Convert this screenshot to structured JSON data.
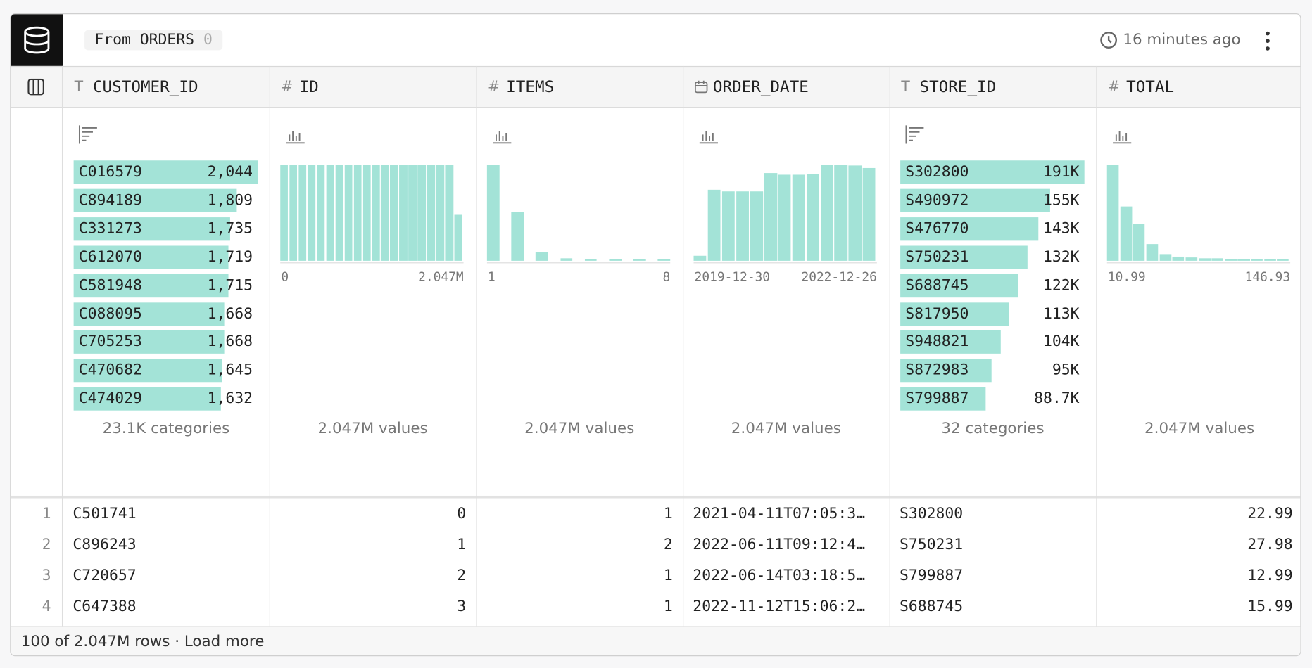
{
  "header": {
    "source": "From ORDERS",
    "count": "0",
    "updated": "16 minutes ago"
  },
  "columns": [
    {
      "icon": "T",
      "name": "CUSTOMER_ID",
      "summary": {
        "kind": "categories",
        "top": [
          {
            "label": "C016579",
            "value": 2044,
            "value_label": "2,044"
          },
          {
            "label": "C894189",
            "value": 1809,
            "value_label": "1,809"
          },
          {
            "label": "C331273",
            "value": 1735,
            "value_label": "1,735"
          },
          {
            "label": "C612070",
            "value": 1719,
            "value_label": "1,719"
          },
          {
            "label": "C581948",
            "value": 1715,
            "value_label": "1,715"
          },
          {
            "label": "C088095",
            "value": 1668,
            "value_label": "1,668"
          },
          {
            "label": "C705253",
            "value": 1668,
            "value_label": "1,668"
          },
          {
            "label": "C470682",
            "value": 1645,
            "value_label": "1,645"
          },
          {
            "label": "C474029",
            "value": 1632,
            "value_label": "1,632"
          }
        ],
        "footer": "23.1K categories"
      }
    },
    {
      "icon": "#",
      "name": "ID",
      "summary": {
        "kind": "histogram",
        "values": [
          115,
          115,
          115,
          115,
          115,
          115,
          115,
          115,
          115,
          115,
          115,
          115,
          115,
          115,
          115,
          115,
          115,
          115,
          115,
          55
        ],
        "range": [
          "0",
          "2.047M"
        ],
        "footer": "2.047M values"
      }
    },
    {
      "icon": "#",
      "name": "ITEMS",
      "summary": {
        "kind": "discrete",
        "values": [
          115,
          58,
          10,
          3,
          2,
          2,
          2,
          2
        ],
        "range": [
          "1",
          "8"
        ],
        "footer": "2.047M values"
      }
    },
    {
      "name": "ORDER_DATE",
      "summary": {
        "kind": "histogram",
        "values": [
          6,
          85,
          83,
          83,
          83,
          105,
          103,
          103,
          104,
          115,
          115,
          114,
          111
        ],
        "range": [
          "2019-12-30",
          "2022-12-26"
        ],
        "footer": "2.047M values"
      }
    },
    {
      "icon": "T",
      "name": "STORE_ID",
      "summary": {
        "kind": "categories",
        "top": [
          {
            "label": "S302800",
            "value": 191000,
            "value_label": "191K"
          },
          {
            "label": "S490972",
            "value": 155000,
            "value_label": "155K"
          },
          {
            "label": "S476770",
            "value": 143000,
            "value_label": "143K"
          },
          {
            "label": "S750231",
            "value": 132000,
            "value_label": "132K"
          },
          {
            "label": "S688745",
            "value": 122000,
            "value_label": "122K"
          },
          {
            "label": "S817950",
            "value": 113000,
            "value_label": "113K"
          },
          {
            "label": "S948821",
            "value": 104000,
            "value_label": "104K"
          },
          {
            "label": "S872983",
            "value": 95000,
            "value_label": "95K"
          },
          {
            "label": "S799887",
            "value": 88700,
            "value_label": "88.7K"
          }
        ],
        "footer": "32 categories"
      }
    },
    {
      "icon": "#",
      "name": "TOTAL",
      "summary": {
        "kind": "histogram",
        "values": [
          115,
          65,
          44,
          20,
          8,
          5,
          4,
          3,
          3,
          2,
          2,
          2,
          2,
          2
        ],
        "range": [
          "10.99",
          "146.93"
        ],
        "footer": "2.047M values"
      }
    }
  ],
  "rows": [
    {
      "index": "1",
      "cells": [
        "C501741",
        "0",
        "1",
        "2021-04-11T07:05:3…",
        "S302800",
        "22.99"
      ]
    },
    {
      "index": "2",
      "cells": [
        "C896243",
        "1",
        "2",
        "2022-06-11T09:12:4…",
        "S750231",
        "27.98"
      ]
    },
    {
      "index": "3",
      "cells": [
        "C720657",
        "2",
        "1",
        "2022-06-14T03:18:5…",
        "S799887",
        "12.99"
      ]
    },
    {
      "index": "4",
      "cells": [
        "C647388",
        "3",
        "1",
        "2022-11-12T15:06:2…",
        "S688745",
        "15.99"
      ]
    }
  ],
  "footer": {
    "rows": "100 of 2.047M rows",
    "separator": "·",
    "action": "Load more"
  }
}
